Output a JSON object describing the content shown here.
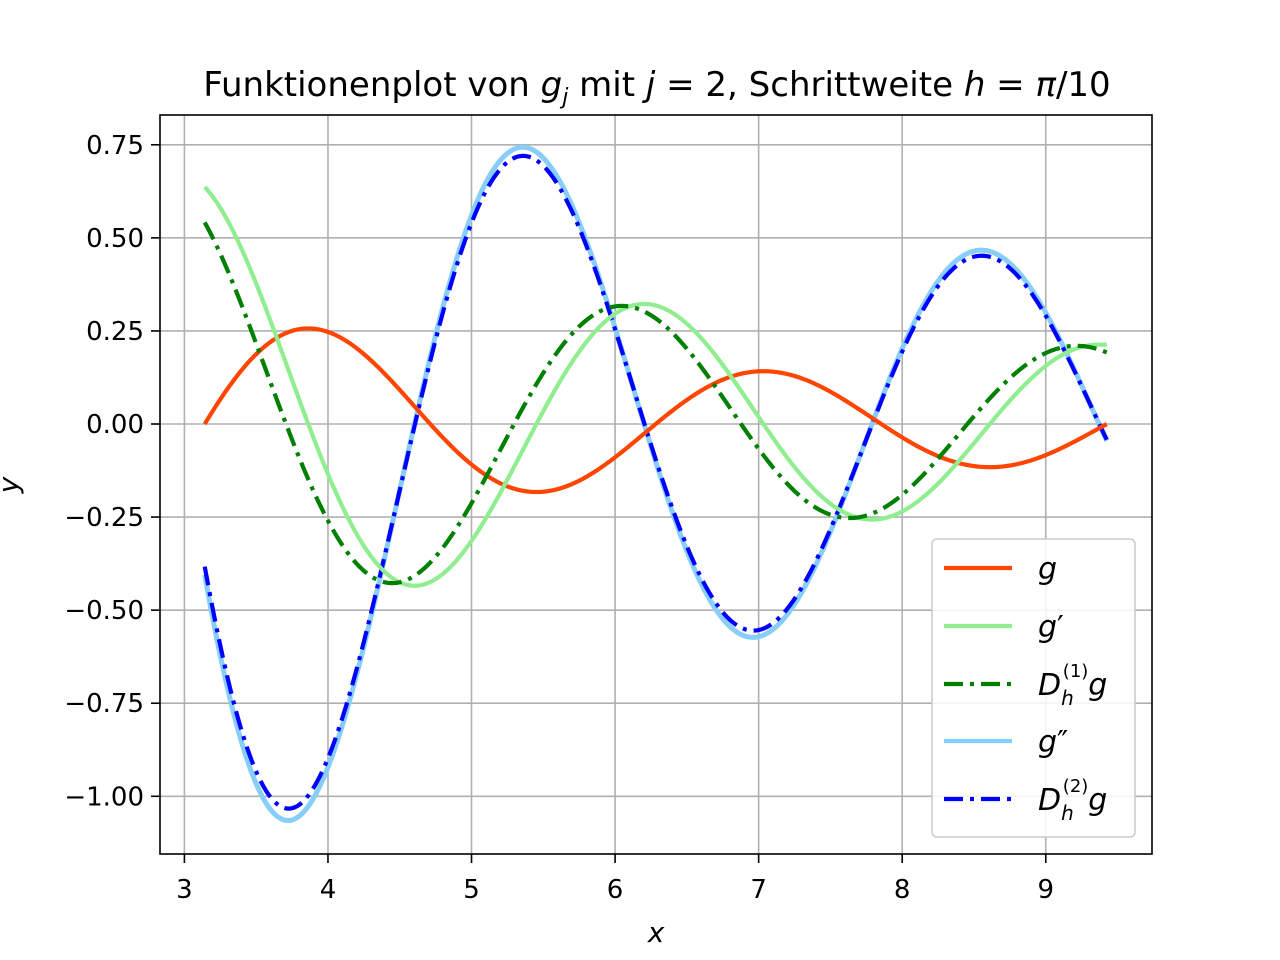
{
  "chart_data": {
    "type": "line",
    "title": "Funktionenplot von g_j mit j = 2, Schrittweite h = π/10",
    "title_parts": {
      "prefix": "Funktionenplot von ",
      "g": "g",
      "g_sub": "j",
      "mit": " mit ",
      "j": "j",
      "eq1": " = 2, Schrittweite ",
      "h": "h",
      "eq2": " = ",
      "pi": "π",
      "slash10": "/10"
    },
    "xlabel": "x",
    "ylabel": "y",
    "xlim": [
      2.83,
      9.74
    ],
    "ylim": [
      -1.155,
      0.83
    ],
    "xticks": [
      3,
      4,
      5,
      6,
      7,
      8,
      9
    ],
    "xtick_labels": [
      "3",
      "4",
      "5",
      "6",
      "7",
      "8",
      "9"
    ],
    "yticks": [
      -1.0,
      -0.75,
      -0.5,
      -0.25,
      0.0,
      0.25,
      0.5,
      0.75
    ],
    "ytick_labels": [
      "−1.00",
      "−0.75",
      "−0.50",
      "−0.25",
      "0.00",
      "0.25",
      "0.50",
      "0.75"
    ],
    "grid": true,
    "legend_position": "bottom-right",
    "x_domain": [
      3.14159,
      9.42478
    ],
    "series": [
      {
        "name": "g",
        "legend": {
          "base": "g",
          "sup": "",
          "sub": "",
          "suffix": "",
          "prime": ""
        },
        "color": "#ff4500",
        "style": "solid",
        "kind": "g",
        "amplitude": 0.25,
        "x": [
          3.14,
          3.5,
          3.85,
          4.25,
          4.6,
          5.0,
          5.43,
          6.0,
          6.5,
          7.0,
          7.5,
          8.0,
          8.6,
          9.0,
          9.42
        ],
        "y": [
          0.0,
          0.19,
          0.255,
          0.19,
          0.03,
          -0.13,
          -0.18,
          -0.085,
          0.09,
          0.14,
          0.075,
          -0.06,
          -0.115,
          -0.085,
          0.0
        ]
      },
      {
        "name": "g′",
        "legend": {
          "base": "g",
          "sup": "",
          "sub": "",
          "suffix": "",
          "prime": "′"
        },
        "color": "#90ee90",
        "style": "solid",
        "kind": "g1",
        "x": [
          3.14,
          3.5,
          3.85,
          4.25,
          4.62,
          5.0,
          5.5,
          6.0,
          6.2,
          6.5,
          7.0,
          7.4,
          7.77,
          8.2,
          8.6,
          9.0,
          9.42
        ],
        "y": [
          0.64,
          0.38,
          0.05,
          -0.34,
          -0.43,
          -0.3,
          0.05,
          0.3,
          0.32,
          0.23,
          -0.02,
          -0.2,
          -0.25,
          -0.16,
          0.0,
          0.15,
          0.21
        ]
      },
      {
        "name": "D_h^(1) g",
        "legend": {
          "base": "D",
          "sup": "(1)",
          "sub": "h",
          "suffix": "g",
          "prime": ""
        },
        "color": "#008000",
        "style": "dashdot",
        "kind": "d1",
        "x": [
          3.14,
          3.5,
          3.9,
          4.25,
          4.45,
          5.0,
          5.5,
          5.9,
          6.05,
          6.5,
          7.0,
          7.4,
          7.67,
          8.1,
          8.5,
          9.0,
          9.42
        ],
        "y": [
          0.54,
          0.27,
          -0.13,
          -0.39,
          -0.43,
          -0.22,
          0.12,
          0.31,
          0.32,
          0.18,
          -0.09,
          -0.23,
          -0.25,
          -0.14,
          0.03,
          0.18,
          0.2
        ]
      },
      {
        "name": "g″",
        "legend": {
          "base": "g",
          "sup": "",
          "sub": "",
          "suffix": "",
          "prime": "″"
        },
        "color": "#87cefa",
        "style": "solid",
        "kind": "g2",
        "x": [
          3.14,
          3.4,
          3.73,
          4.0,
          4.5,
          5.0,
          5.37,
          5.7,
          6.0,
          6.5,
          6.98,
          7.3,
          7.8,
          8.2,
          8.58,
          9.0,
          9.42
        ],
        "y": [
          -0.4,
          -0.8,
          -1.06,
          -0.94,
          -0.2,
          0.55,
          0.74,
          0.6,
          0.27,
          -0.3,
          -0.57,
          -0.45,
          0.0,
          0.33,
          0.46,
          0.3,
          -0.04
        ]
      },
      {
        "name": "D_h^(2) g",
        "legend": {
          "base": "D",
          "sup": "(2)",
          "sub": "h",
          "suffix": "g",
          "prime": ""
        },
        "color": "#0000ff",
        "style": "dashdot",
        "kind": "d2",
        "x": [
          3.14,
          3.4,
          3.73,
          4.0,
          4.5,
          5.0,
          5.37,
          5.7,
          6.0,
          6.5,
          6.98,
          7.3,
          7.8,
          8.2,
          8.58,
          9.0,
          9.42
        ],
        "y": [
          -0.38,
          -0.78,
          -1.04,
          -0.92,
          -0.2,
          0.53,
          0.72,
          0.58,
          0.26,
          -0.29,
          -0.555,
          -0.44,
          0.0,
          0.32,
          0.45,
          0.29,
          -0.05
        ]
      }
    ]
  }
}
